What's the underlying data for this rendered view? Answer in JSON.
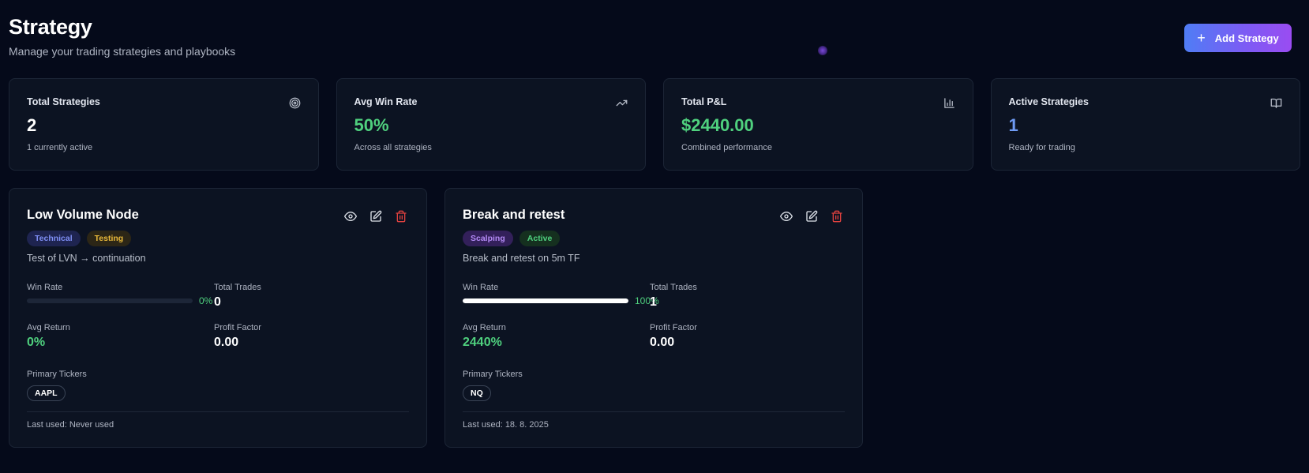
{
  "header": {
    "title": "Strategy",
    "subtitle": "Manage your trading strategies and playbooks",
    "add_button": "Add Strategy",
    "add_icon": "plus-icon"
  },
  "stats": [
    {
      "label": "Total Strategies",
      "value": "2",
      "sub": "1 currently active",
      "icon": "target-icon",
      "color": "#ffffff"
    },
    {
      "label": "Avg Win Rate",
      "value": "50%",
      "sub": "Across all strategies",
      "icon": "trending-up-icon",
      "color": "#4fd07e"
    },
    {
      "label": "Total P&L",
      "value": "$2440.00",
      "sub": "Combined performance",
      "icon": "bar-chart-icon",
      "color": "#4fd07e"
    },
    {
      "label": "Active Strategies",
      "value": "1",
      "sub": "Ready for trading",
      "icon": "book-open-icon",
      "color": "#6f9bf4"
    }
  ],
  "strategies": [
    {
      "name": "Low Volume Node",
      "tags": [
        "Technical",
        "Testing"
      ],
      "description": "Test of LVN → continuation",
      "win_rate_label": "Win Rate",
      "win_rate": "0%",
      "win_rate_fraction": 0,
      "total_trades_label": "Total Trades",
      "total_trades": "0",
      "avg_return_label": "Avg Return",
      "avg_return": "0%",
      "profit_factor_label": "Profit Factor",
      "profit_factor": "0.00",
      "tickers_label": "Primary Tickers",
      "tickers": [
        "AAPL"
      ],
      "last_used": "Last used: Never used"
    },
    {
      "name": "Break and retest",
      "tags": [
        "Scalping",
        "Active"
      ],
      "description": "Break and retest on 5m TF",
      "win_rate_label": "Win Rate",
      "win_rate": "100%",
      "win_rate_fraction": 1,
      "total_trades_label": "Total Trades",
      "total_trades": "1",
      "avg_return_label": "Avg Return",
      "avg_return": "2440%",
      "profit_factor_label": "Profit Factor",
      "profit_factor": "0.00",
      "tickers_label": "Primary Tickers",
      "tickers": [
        "NQ"
      ],
      "last_used": "Last used: 18. 8. 2025"
    }
  ],
  "colors": {
    "background": "#050a1a",
    "card": "#0c1322",
    "positive": "#4fd07e",
    "accent_blue": "#6f9bf4",
    "delete": "#e0413f"
  }
}
